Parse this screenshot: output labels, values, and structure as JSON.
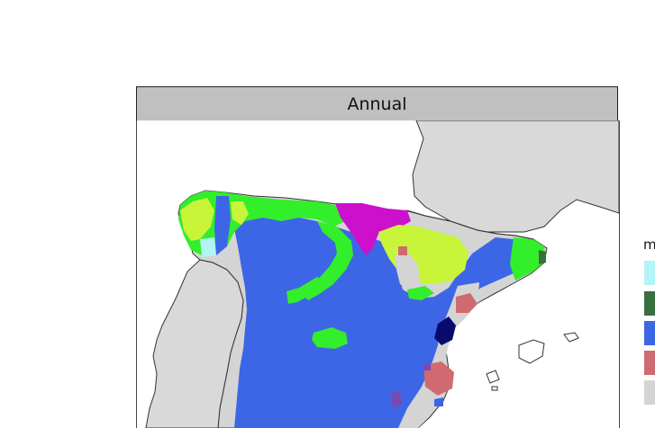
{
  "panel": {
    "title": "Annual"
  },
  "legend": {
    "title_partial": "m",
    "swatches": [
      {
        "name": "cyan-class",
        "color": "#b3f5f5"
      },
      {
        "name": "dark-green-class",
        "color": "#3a6e3e"
      },
      {
        "name": "blue-class",
        "color": "#3d66e6"
      },
      {
        "name": "salmon-class",
        "color": "#cf6b70"
      },
      {
        "name": "grey-class",
        "color": "#d4d4d4"
      }
    ]
  },
  "colors": {
    "sea": "#ffffff",
    "land_outside": "#d9d9d9",
    "coastline": "#333333",
    "blue_class": "#3d66e6",
    "light_green_class": "#33ee2a",
    "yellow_green_class": "#c8f53a",
    "magenta_class": "#cc10cc",
    "salmon_class": "#cf6b70",
    "navy_class": "#0a0a6e",
    "dark_green_class": "#3a6e3e",
    "cyan_class": "#b3f5f5",
    "purple_class": "#7a4ab0",
    "grey_class": "#d4d4d4"
  }
}
